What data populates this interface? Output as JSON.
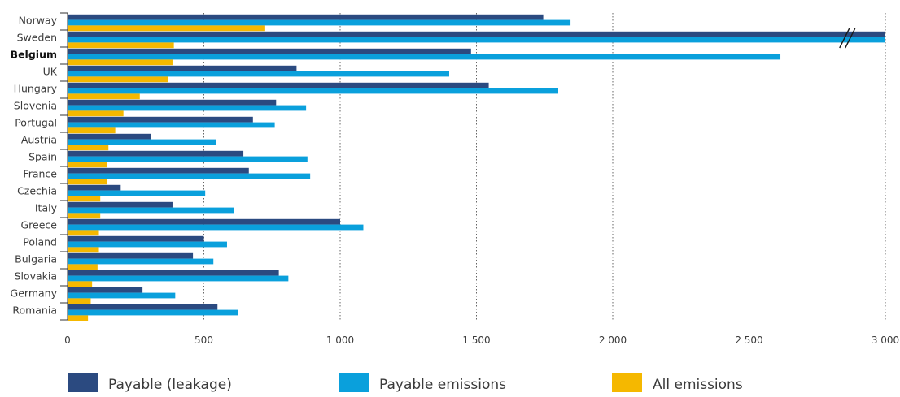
{
  "chart_data": {
    "type": "bar",
    "orientation": "horizontal",
    "categories": [
      "Norway",
      "Sweden",
      "Belgium",
      "UK",
      "Hungary",
      "Slovenia",
      "Portugal",
      "Austria",
      "Spain",
      "France",
      "Czechia",
      "Italy",
      "Greece",
      "Poland",
      "Bulgaria",
      "Slovakia",
      "Germany",
      "Romania"
    ],
    "highlighted_category": "Belgium",
    "series": [
      {
        "name": "Payable (leakage)",
        "color": "#2b4a80",
        "values": [
          1745,
          3000,
          1480,
          840,
          1545,
          765,
          680,
          305,
          645,
          665,
          195,
          385,
          1000,
          500,
          460,
          775,
          275,
          550
        ]
      },
      {
        "name": "Payable emissions",
        "color": "#0aa0dc",
        "values": [
          1845,
          3000,
          2615,
          1400,
          1800,
          875,
          760,
          545,
          880,
          890,
          505,
          610,
          1085,
          585,
          535,
          810,
          395,
          625
        ]
      },
      {
        "name": "All emissions",
        "color": "#f5b800",
        "values": [
          725,
          390,
          385,
          370,
          265,
          205,
          175,
          150,
          145,
          145,
          120,
          120,
          115,
          115,
          110,
          90,
          85,
          75
        ]
      }
    ],
    "truncated_bars": [
      "Sweden"
    ],
    "xlim": [
      0,
      3000
    ],
    "xticks": [
      0,
      500,
      1000,
      1500,
      2000,
      2500,
      3000
    ],
    "xtick_labels": [
      "0",
      "500",
      "1 000",
      "1 500",
      "2 000",
      "2 500",
      "3 000"
    ],
    "grid": "vertical dotted",
    "legend_position": "bottom",
    "title": "",
    "xlabel": "",
    "ylabel": ""
  },
  "colors": {
    "axis": "#333333",
    "grid": "#666666",
    "text": "#3a3a3a"
  }
}
